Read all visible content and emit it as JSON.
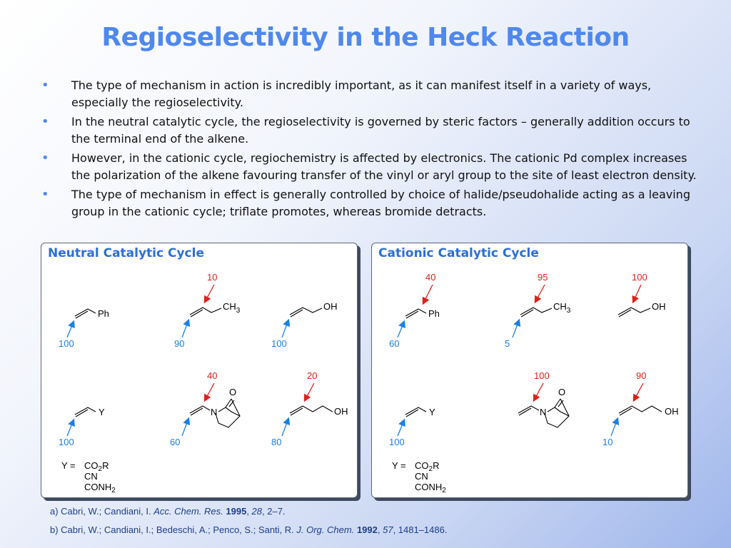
{
  "slide": {
    "title": "Regioselectivity in the Heck Reaction",
    "bullets": [
      "The type of mechanism in action is incredibly important, as it can manifest itself in a variety of ways, especially the regioselectivity.",
      "In the neutral catalytic cycle, the regioselectivity is governed by steric factors – generally addition occurs to the terminal end of the alkene.",
      "However, in the cationic cycle, regiochemistry is affected by electronics. The cationic Pd complex increases the polarization of the alkene favouring transfer of the vinyl or aryl group to the site of least electron density.",
      "The type of mechanism in effect is generally controlled by choice of halide/pseudohalide acting as a leaving group in the cationic cycle; triflate promotes, whereas bromide detracts."
    ],
    "bullet_marker": "•"
  },
  "panels": {
    "neutral": {
      "title": "Neutral Catalytic Cycle",
      "styrene": {
        "sub": "Ph",
        "internal": "",
        "terminal": "100"
      },
      "butene": {
        "sub": "CH",
        "sub_idx": "3",
        "internal": "10",
        "terminal": "90"
      },
      "allyl": {
        "sub": "OH",
        "internal": "",
        "terminal": "100"
      },
      "acrylate": {
        "sub": "Y",
        "internal": "",
        "terminal": "100"
      },
      "vinylamide": {
        "n": "N",
        "o": "O",
        "internal": "40",
        "terminal": "60"
      },
      "butenol": {
        "sub": "OH",
        "internal": "20",
        "terminal": "80"
      },
      "ykey": {
        "label": "Y =",
        "line1_a": "CO",
        "line1_b": "2",
        "line1_c": "R",
        "line2": "CN",
        "line3_a": "CONH",
        "line3_b": "2"
      }
    },
    "cationic": {
      "title": "Cationic Catalytic Cycle",
      "styrene": {
        "sub": "Ph",
        "internal": "40",
        "terminal": "60"
      },
      "butene": {
        "sub": "CH",
        "sub_idx": "3",
        "internal": "95",
        "terminal": "5"
      },
      "allyl": {
        "sub": "OH",
        "internal": "100",
        "terminal": ""
      },
      "acrylate": {
        "sub": "Y",
        "internal": "",
        "terminal": "100"
      },
      "vinylamide": {
        "n": "N",
        "o": "O",
        "internal": "100",
        "terminal": ""
      },
      "butenol": {
        "sub": "OH",
        "internal": "90",
        "terminal": "10"
      },
      "ykey": {
        "label": "Y =",
        "line1_a": "CO",
        "line1_b": "2",
        "line1_c": "R",
        "line2": "CN",
        "line3_a": "CONH",
        "line3_b": "2"
      }
    }
  },
  "references": {
    "a": {
      "prefix": "a) Cabri, W.; Candiani, I. ",
      "journal": "Acc. Chem. Res.",
      "year": "1995",
      "volume": "28",
      "pages": ", 2–7."
    },
    "b": {
      "prefix": "b) Cabri, W.; Candiani, I.; Bedeschi, A.; Penco, S.; Santi, R. ",
      "journal": "J. Org. Chem.",
      "year": "1992",
      "volume": "57",
      "pages": ", 1481–1486."
    }
  },
  "colors": {
    "title": "#4f88ee",
    "panel_title": "#2a6fd8",
    "internal": "#e0201b",
    "terminal": "#1a7fe8",
    "refs": "#1f3d8a"
  }
}
